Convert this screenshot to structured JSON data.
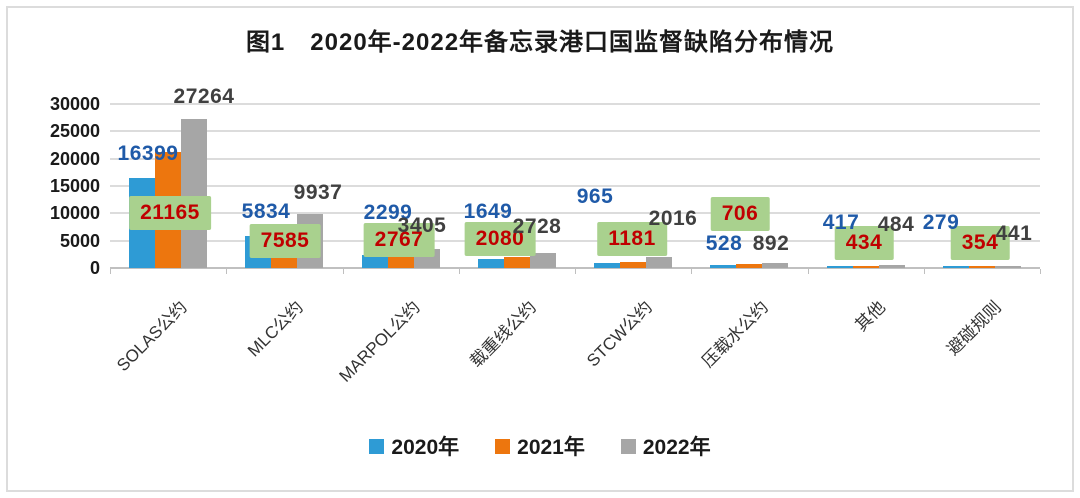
{
  "figure": {
    "title": "图1　2020年-2022年备忘录港口国监督缺陷分布情况"
  },
  "chart_data": {
    "type": "bar",
    "title": "图1　2020年-2022年备忘录港口国监督缺陷分布情况",
    "categories": [
      "SOLAS公约",
      "MLC公约",
      "MARPOL公约",
      "载重线公约",
      "STCW公约",
      "压载水公约",
      "其他",
      "避碰规则"
    ],
    "series": [
      {
        "name": "2020年",
        "color": "#2E9BD5",
        "label_color": "#1F5AA8",
        "values": [
          16399,
          5834,
          2299,
          1649,
          965,
          528,
          417,
          279
        ]
      },
      {
        "name": "2021年",
        "color": "#ED760E",
        "label_color": "#C00000",
        "label_bg": "#A9D18E",
        "values": [
          21165,
          7585,
          2767,
          2080,
          1181,
          706,
          434,
          354
        ]
      },
      {
        "name": "2022年",
        "color": "#A6A6A6",
        "label_color": "#404040",
        "values": [
          27264,
          9937,
          3405,
          2728,
          2016,
          892,
          484,
          441
        ]
      }
    ],
    "xlabel": "",
    "ylabel": "",
    "ylim": [
      0,
      30000
    ],
    "yticks": [
      0,
      5000,
      10000,
      15000,
      20000,
      25000,
      30000
    ],
    "grid": true,
    "legend_position": "bottom"
  }
}
